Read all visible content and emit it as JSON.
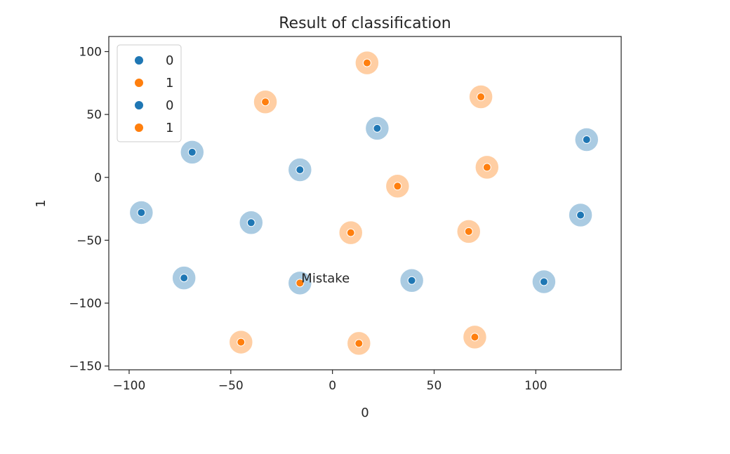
{
  "chart_data": {
    "type": "scatter",
    "title": "Result of classification",
    "xlabel": "0",
    "ylabel": "1",
    "xlim": [
      -110,
      142
    ],
    "ylim": [
      -153,
      112
    ],
    "xticks": [
      -100,
      -50,
      0,
      50,
      100
    ],
    "xtick_labels": [
      "−100",
      "−50",
      "0",
      "50",
      "100"
    ],
    "yticks": [
      100,
      50,
      0,
      -50,
      -100,
      -150
    ],
    "ytick_labels": [
      "100",
      "50",
      "0",
      "−50",
      "−100",
      "−150"
    ],
    "grid": false,
    "legend": {
      "placement": "top-left",
      "entries": [
        {
          "label": "0",
          "color": "#1f77b4"
        },
        {
          "label": "1",
          "color": "#ff7f0e"
        },
        {
          "label": "0",
          "color": "#1f77b4"
        },
        {
          "label": "1",
          "color": "#ff7f0e"
        }
      ]
    },
    "colors": {
      "class_0": "#1f77b4",
      "class_1": "#ff7f0e"
    },
    "series": [
      {
        "role": "true-label-halo",
        "points": [
          {
            "x": 17,
            "y": 91,
            "class": 1
          },
          {
            "x": 73,
            "y": 64,
            "class": 1
          },
          {
            "x": -33,
            "y": 60,
            "class": 1
          },
          {
            "x": 22,
            "y": 39,
            "class": 0
          },
          {
            "x": 125,
            "y": 30,
            "class": 0
          },
          {
            "x": -69,
            "y": 20,
            "class": 0
          },
          {
            "x": -16,
            "y": 6,
            "class": 0
          },
          {
            "x": 76,
            "y": 8,
            "class": 1
          },
          {
            "x": 32,
            "y": -7,
            "class": 1
          },
          {
            "x": -94,
            "y": -28,
            "class": 0
          },
          {
            "x": -40,
            "y": -36,
            "class": 0
          },
          {
            "x": 122,
            "y": -30,
            "class": 0
          },
          {
            "x": 9,
            "y": -44,
            "class": 1
          },
          {
            "x": 67,
            "y": -43,
            "class": 1
          },
          {
            "x": -73,
            "y": -80,
            "class": 0
          },
          {
            "x": -16,
            "y": -84,
            "class": 0
          },
          {
            "x": 39,
            "y": -82,
            "class": 0
          },
          {
            "x": 104,
            "y": -83,
            "class": 0
          },
          {
            "x": -45,
            "y": -131,
            "class": 1
          },
          {
            "x": 13,
            "y": -132,
            "class": 1
          },
          {
            "x": 70,
            "y": -127,
            "class": 1
          }
        ]
      },
      {
        "role": "predicted-label",
        "points": [
          {
            "x": 17,
            "y": 91,
            "class": 1
          },
          {
            "x": 73,
            "y": 64,
            "class": 1
          },
          {
            "x": -33,
            "y": 60,
            "class": 1
          },
          {
            "x": 22,
            "y": 39,
            "class": 0
          },
          {
            "x": 125,
            "y": 30,
            "class": 0
          },
          {
            "x": -69,
            "y": 20,
            "class": 0
          },
          {
            "x": -16,
            "y": 6,
            "class": 0
          },
          {
            "x": 76,
            "y": 8,
            "class": 1
          },
          {
            "x": 32,
            "y": -7,
            "class": 1
          },
          {
            "x": -94,
            "y": -28,
            "class": 0
          },
          {
            "x": -40,
            "y": -36,
            "class": 0
          },
          {
            "x": 122,
            "y": -30,
            "class": 0
          },
          {
            "x": 9,
            "y": -44,
            "class": 1
          },
          {
            "x": 67,
            "y": -43,
            "class": 1
          },
          {
            "x": -73,
            "y": -80,
            "class": 0
          },
          {
            "x": -16,
            "y": -84,
            "class": 1
          },
          {
            "x": 39,
            "y": -82,
            "class": 0
          },
          {
            "x": 104,
            "y": -83,
            "class": 0
          },
          {
            "x": -45,
            "y": -131,
            "class": 1
          },
          {
            "x": 13,
            "y": -132,
            "class": 1
          },
          {
            "x": 70,
            "y": -127,
            "class": 1
          }
        ]
      }
    ],
    "annotations": [
      {
        "text": "Mistake",
        "x": -16,
        "y": -84
      }
    ]
  }
}
